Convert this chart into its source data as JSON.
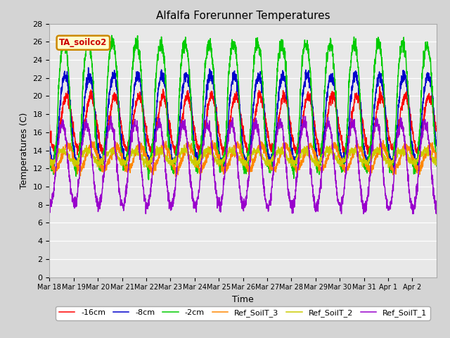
{
  "title": "Alfalfa Forerunner Temperatures",
  "xlabel": "Time",
  "ylabel": "Temperatures (C)",
  "ylim": [
    0,
    28
  ],
  "yticks": [
    0,
    2,
    4,
    6,
    8,
    10,
    12,
    14,
    16,
    18,
    20,
    22,
    24,
    26,
    28
  ],
  "bg_outer": "#d4d4d4",
  "bg_inner": "#e8e8e8",
  "grid_color": "#ffffff",
  "annotation_text": "TA_soilco2",
  "annotation_color": "#cc0000",
  "annotation_bg": "#ffffcc",
  "annotation_border": "#cc8800",
  "colors": {
    "-16cm": "#ff0000",
    "-8cm": "#0000cc",
    "-2cm": "#00cc00",
    "Ref_SoilT_3": "#ff8800",
    "Ref_SoilT_2": "#cccc00",
    "Ref_SoilT_1": "#9900cc"
  },
  "legend_labels": [
    "-16cm",
    "-8cm",
    "-2cm",
    "Ref_SoilT_3",
    "Ref_SoilT_2",
    "Ref_SoilT_1"
  ],
  "x_tick_labels": [
    "Mar 18",
    "Mar 19",
    "Mar 20",
    "Mar 21",
    "Mar 22",
    "Mar 23",
    "Mar 24",
    "Mar 25",
    "Mar 26",
    "Mar 27",
    "Mar 28",
    "Mar 29",
    "Mar 30",
    "Mar 31",
    "Apr 1",
    "Apr 2"
  ],
  "num_days": 16,
  "spd": 144
}
